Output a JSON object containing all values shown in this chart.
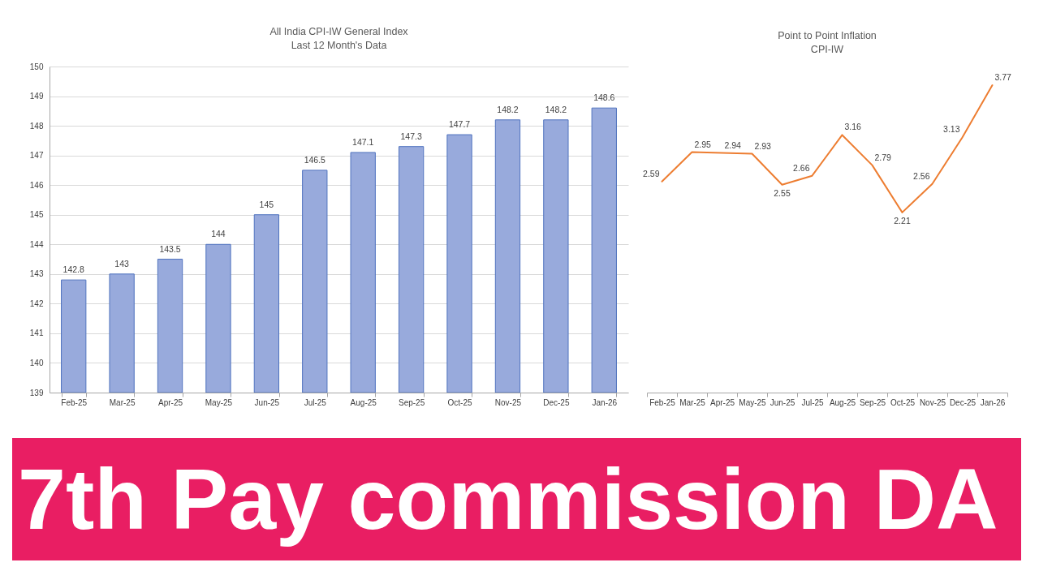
{
  "chart_data": [
    {
      "type": "bar",
      "title": "All India CPI-IW General Index",
      "subtitle": "Last 12 Month's Data",
      "categories": [
        "Feb-25",
        "Mar-25",
        "Apr-25",
        "May-25",
        "Jun-25",
        "Jul-25",
        "Aug-25",
        "Sep-25",
        "Oct-25",
        "Nov-25",
        "Dec-25",
        "Jan-26"
      ],
      "values": [
        142.8,
        143,
        143.5,
        144,
        145,
        146.5,
        147.1,
        147.3,
        147.7,
        148.2,
        148.2,
        148.6
      ],
      "color": "#98aadc",
      "ylim": [
        139,
        150
      ],
      "yticks": [
        139,
        140,
        141,
        142,
        143,
        144,
        145,
        146,
        147,
        148,
        149,
        150
      ],
      "grid": "y",
      "data_labels": true
    },
    {
      "type": "line",
      "title": "Point to Point Inflation",
      "subtitle": "CPI-IW",
      "categories": [
        "Feb-25",
        "Mar-25",
        "Apr-25",
        "May-25",
        "Jun-25",
        "Jul-25",
        "Aug-25",
        "Sep-25",
        "Oct-25",
        "Nov-25",
        "Dec-25",
        "Jan-26"
      ],
      "values": [
        2.59,
        2.95,
        2.94,
        2.93,
        2.55,
        2.66,
        3.16,
        2.79,
        2.21,
        2.56,
        3.13,
        3.77
      ],
      "color": "#ed7d31",
      "marker": "none",
      "line_style": "solid",
      "data_labels": true,
      "tick_labels": "x"
    },
    {
      "type": "other",
      "annotations": [
        "7th Pay commission DA"
      ],
      "color": "#e91e63"
    }
  ]
}
